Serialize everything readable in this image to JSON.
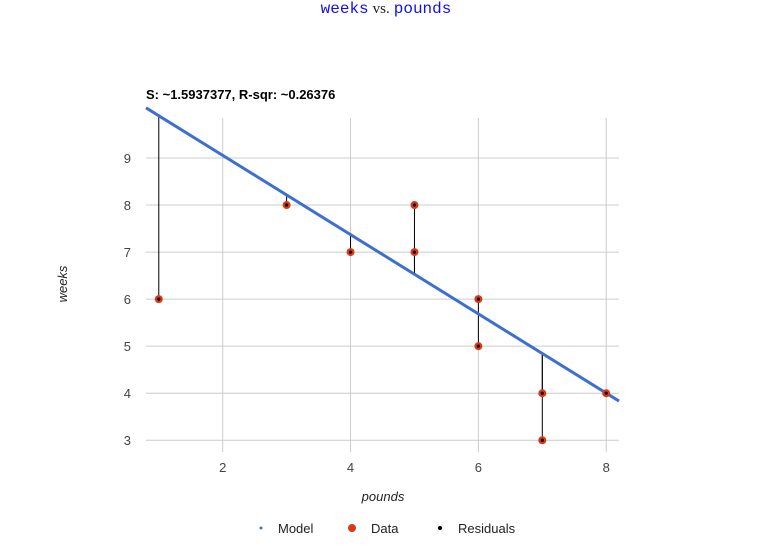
{
  "header": {
    "title_y": "weeks",
    "title_vs": "vs.",
    "title_x": "pounds"
  },
  "chart_data": {
    "type": "scatter",
    "subtitle": "S: ~1.5937377, R-sqr: ~0.26376",
    "xlabel": "pounds",
    "ylabel": "weeks",
    "xlim": [
      0.8,
      8.2
    ],
    "ylim": [
      2.75,
      9.85
    ],
    "x_ticks": [
      "2",
      "4",
      "6",
      "8"
    ],
    "x_tick_values": [
      2,
      4,
      6,
      8
    ],
    "y_ticks": [
      "3",
      "4",
      "5",
      "6",
      "7",
      "8",
      "9"
    ],
    "y_tick_values": [
      3,
      4,
      5,
      6,
      7,
      8,
      9
    ],
    "grid": true,
    "legend_placement": "bottom",
    "legend": [
      {
        "label": "Model",
        "marker": "model-dot"
      },
      {
        "label": "Data",
        "marker": "data-dot"
      },
      {
        "label": "Residuals",
        "marker": "residual-dot"
      }
    ],
    "colors": {
      "model": "#3c6fd0",
      "data": "#dc3912",
      "residual": "#000000",
      "grid": "#cccccc"
    },
    "series": [
      {
        "name": "Data",
        "points": [
          {
            "x": 1,
            "y": 6
          },
          {
            "x": 3,
            "y": 8
          },
          {
            "x": 4,
            "y": 7
          },
          {
            "x": 5,
            "y": 7
          },
          {
            "x": 5,
            "y": 8
          },
          {
            "x": 6,
            "y": 6
          },
          {
            "x": 6,
            "y": 5
          },
          {
            "x": 7,
            "y": 4
          },
          {
            "x": 7,
            "y": 3
          },
          {
            "x": 8,
            "y": 4
          }
        ]
      }
    ],
    "model": {
      "name": "Model",
      "intercept": 10.74,
      "slope": -0.8423,
      "x_range": [
        0.8,
        8.2
      ]
    }
  }
}
